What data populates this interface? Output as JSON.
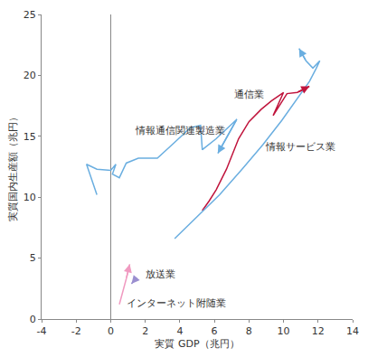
{
  "chart_data": {
    "type": "line",
    "x_label": "実質 GDP（兆円）",
    "y_label": "実質国内生産額（兆円）",
    "xlim": [
      -4,
      14
    ],
    "xticks": [
      -4,
      -2,
      0,
      2,
      4,
      6,
      8,
      10,
      12,
      14
    ],
    "ylim": [
      0,
      25
    ],
    "yticks": [
      0,
      5,
      10,
      15,
      20,
      25
    ],
    "grid": false,
    "marker": "arrow",
    "series": [
      {
        "name": "情報通信関連製造業",
        "color": "#6aaee0",
        "x": [
          -0.8,
          -1.4,
          -0.8,
          0,
          0.3,
          0.1,
          0.5,
          0.9,
          1.6,
          2.7,
          3.7,
          4.6,
          5.2,
          5.3,
          6.1,
          7.3,
          6.2
        ],
        "values": [
          10.2,
          12.7,
          12.3,
          12.2,
          12.7,
          11.9,
          11.6,
          12.8,
          13.2,
          13.2,
          14.5,
          15.7,
          15.9,
          13.9,
          14.8,
          16.4,
          13.6
        ]
      },
      {
        "name": "通信業",
        "color": "#c0143c",
        "x": [
          5.3,
          5.7,
          6.1,
          6.7,
          7.4,
          8.0,
          8.7,
          9.3,
          10.0,
          9.4,
          10.2,
          10.8,
          11.5
        ],
        "values": [
          8.9,
          9.7,
          10.6,
          12.3,
          14.8,
          16.2,
          17.2,
          17.9,
          18.6,
          16.7,
          18.5,
          18.6,
          19.1
        ]
      },
      {
        "name": "情報サービス業",
        "color": "#6aaee0",
        "x": [
          3.7,
          5.0,
          6.3,
          7.6,
          8.8,
          9.9,
          10.8,
          11.5,
          11.9,
          12.1,
          11.7,
          11.3,
          10.9
        ],
        "values": [
          6.6,
          8.4,
          10.2,
          12.3,
          14.3,
          16.3,
          18.1,
          19.5,
          20.6,
          21.2,
          20.6,
          21.2,
          22.2
        ]
      },
      {
        "name": "放送業",
        "color": "#9b8fd0",
        "x": [
          1.5,
          1.2
        ],
        "values": [
          3.4,
          2.9
        ]
      },
      {
        "name": "インターネット附随業",
        "color": "#f09ac0",
        "x": [
          0.5,
          0.7,
          0.9,
          1.1
        ],
        "values": [
          1.2,
          2.2,
          3.3,
          4.5
        ]
      }
    ]
  }
}
